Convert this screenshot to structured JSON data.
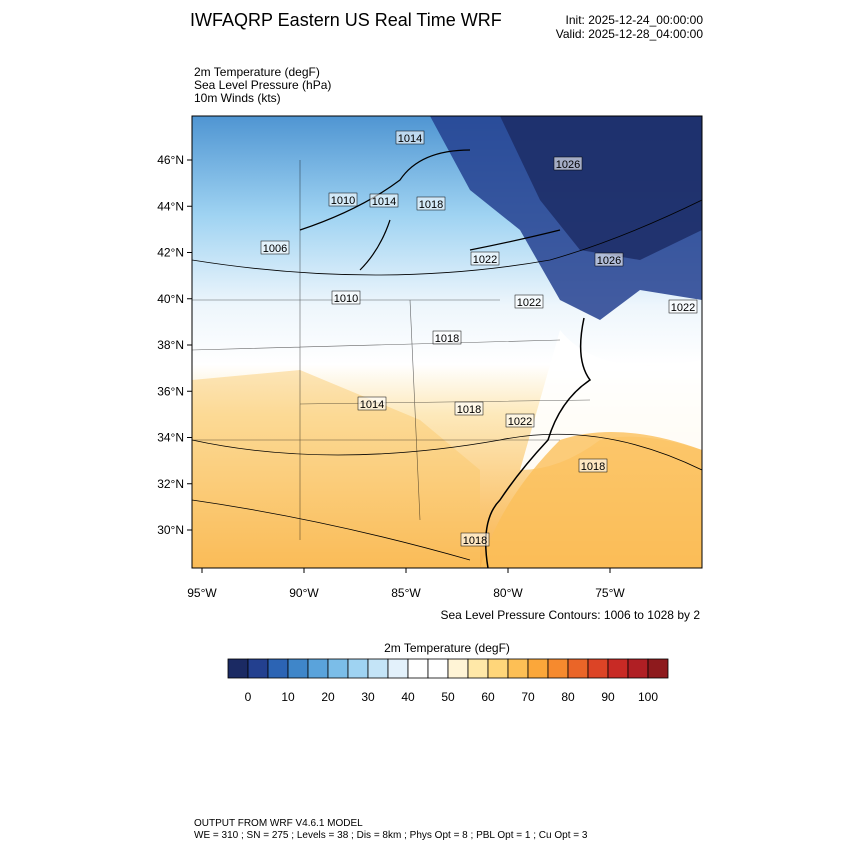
{
  "header": {
    "title": "IWFAQRP Eastern US Real Time WRF",
    "init": "Init: 2025-12-24_00:00:00",
    "valid": "Valid: 2025-12-28_04:00:00"
  },
  "fields": [
    "2m Temperature   (degF)",
    "Sea Level Pressure   (hPa)",
    "10m Winds   (kts)"
  ],
  "map": {
    "lat_labels": [
      "46°N",
      "44°N",
      "42°N",
      "40°N",
      "38°N",
      "36°N",
      "34°N",
      "32°N",
      "30°N"
    ],
    "lon_labels": [
      "95°W",
      "90°W",
      "85°W",
      "80°W",
      "75°W"
    ],
    "contour_labels": [
      "1014",
      "1026",
      "1010",
      "1014",
      "1018",
      "1006",
      "1022",
      "1026",
      "1010",
      "1022",
      "1022",
      "1018",
      "1014",
      "1018",
      "1022",
      "1018",
      "1018"
    ],
    "contour_note": "Sea Level Pressure Contours: 1006 to 1028 by 2"
  },
  "colorbar": {
    "title": "2m Temperature  (degF)",
    "colors": [
      "#1b2a63",
      "#23408f",
      "#2c64b4",
      "#3f86c9",
      "#5aa3db",
      "#7bbde8",
      "#9fd3f2",
      "#c4e4f7",
      "#e3f1fb",
      "#ffffff",
      "#ffffff",
      "#fff4d6",
      "#ffe8a8",
      "#ffd67a",
      "#fdbf55",
      "#fba73a",
      "#f68a2e",
      "#ea6528",
      "#dc4426",
      "#c82a25",
      "#b01f24",
      "#8e1a1d"
    ],
    "labels": [
      "0",
      "10",
      "20",
      "30",
      "40",
      "50",
      "60",
      "70",
      "80",
      "90",
      "100"
    ]
  },
  "footer": {
    "model": "OUTPUT FROM WRF V4.6.1 MODEL",
    "settings": "WE = 310 ; SN = 275 ; Levels = 38 ; Dis = 8km ; Phys Opt = 8 ; PBL Opt = 1 ; Cu Opt = 3"
  }
}
